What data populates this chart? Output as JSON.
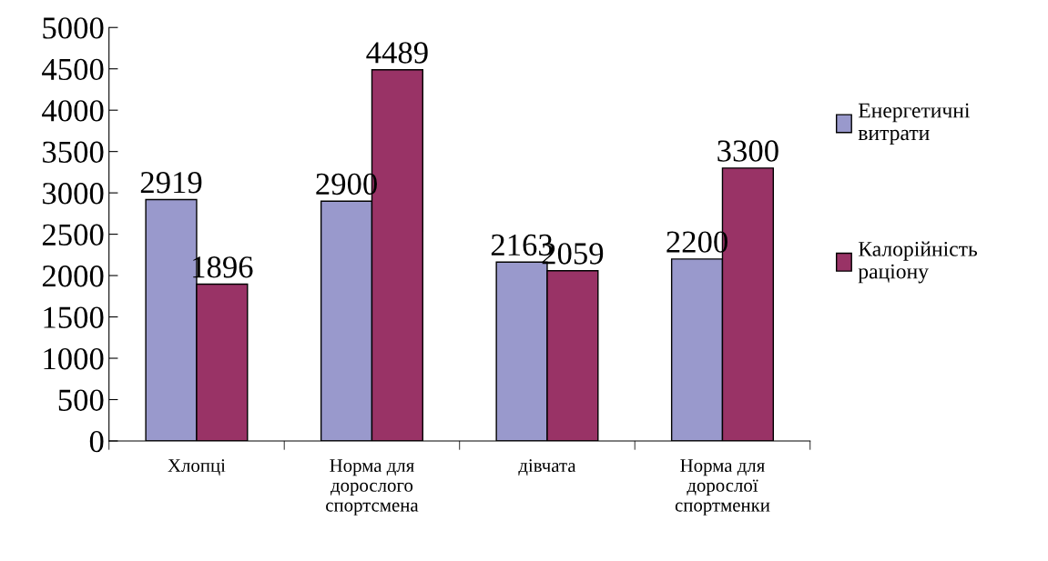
{
  "chart_data": {
    "type": "bar",
    "categories": [
      "Хлопці",
      "Норма для\nдорослого\nспортсмена",
      "дівчата",
      "Норма для\nдорослої\nспортменки"
    ],
    "series": [
      {
        "name": "Енергетичні\nвитрати",
        "color": "#9999cc",
        "values": [
          2919,
          2900,
          2163,
          2200
        ]
      },
      {
        "name": "Калорійність\nраціону",
        "color": "#993366",
        "values": [
          1896,
          4489,
          2059,
          3300
        ]
      }
    ],
    "ylim": [
      0,
      5000
    ],
    "yticks": [
      0,
      500,
      1000,
      1500,
      2000,
      2500,
      3000,
      3500,
      4000,
      4500,
      5000
    ],
    "grid": false,
    "legend": "right",
    "data_labels": true
  }
}
